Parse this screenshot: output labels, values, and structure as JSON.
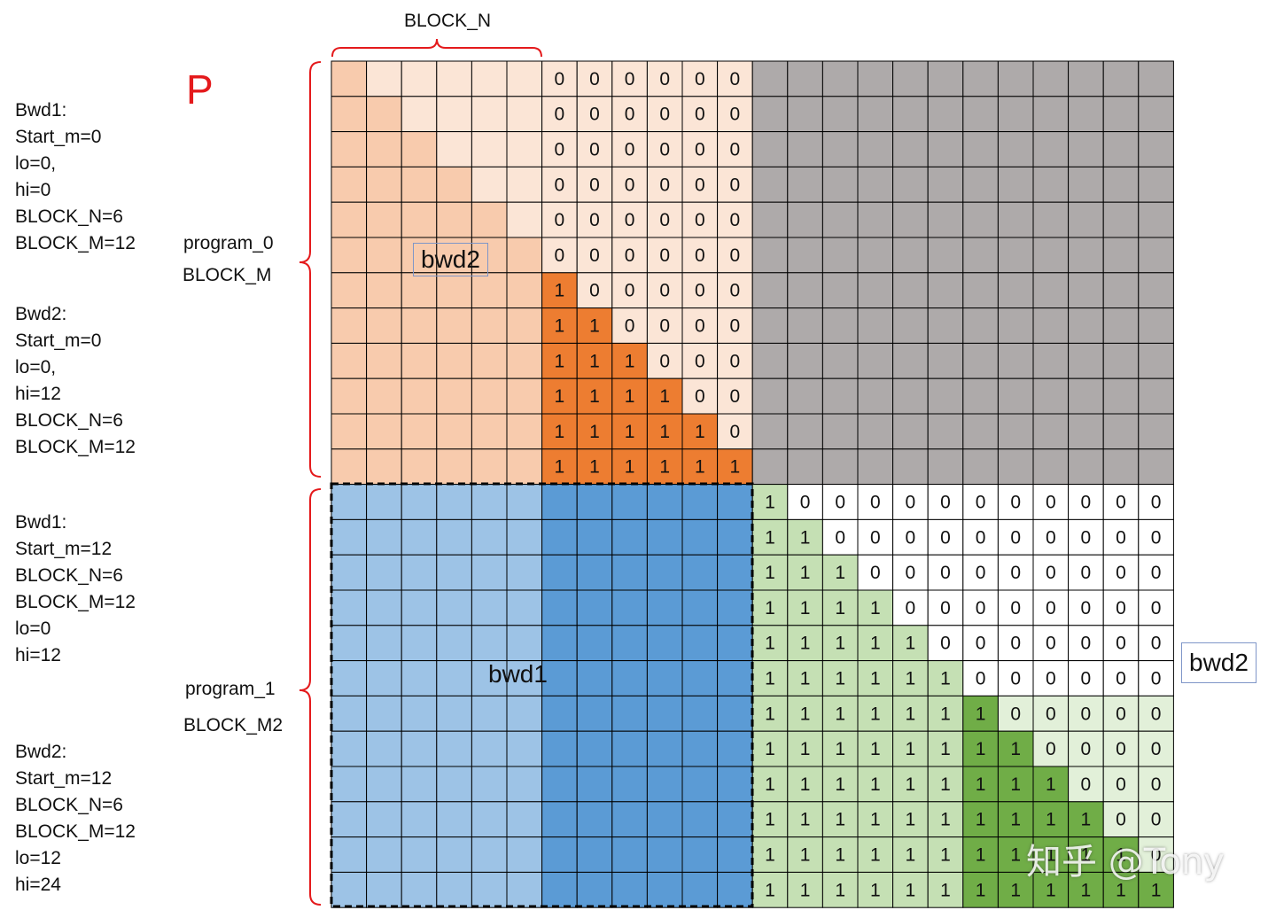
{
  "top_label": "BLOCK_N",
  "p_label": "P",
  "program_0": {
    "name": "program_0",
    "block": "BLOCK_M"
  },
  "program_1": {
    "name": "program_1",
    "block": "BLOCK_M2"
  },
  "region_labels": {
    "bwd2_top": "bwd2",
    "bwd1": "bwd1",
    "bwd2_right": "bwd2"
  },
  "notes": {
    "p0_bwd1": "Bwd1:\nStart_m=0\nlo=0,\nhi=0\nBLOCK_N=6\nBLOCK_M=12",
    "p0_bwd2": "Bwd2:\nStart_m=0\nlo=0,\nhi=12\nBLOCK_N=6\nBLOCK_M=12",
    "p1_bwd1": "Bwd1:\nStart_m=12\nBLOCK_N=6\nBLOCK_M=12\nlo=0\nhi=12",
    "p1_bwd2": "Bwd2:\nStart_m=12\nBLOCK_N=6\nBLOCK_M=12\nlo=12\nhi=24"
  },
  "watermark": "知乎 @Tony",
  "grid": {
    "rows": 24,
    "cols": 24,
    "block_n": 6,
    "block_m": 12,
    "cell_values": {
      "zero": "0",
      "one": "1"
    }
  },
  "colors": {
    "orange_light": "#f8cbad",
    "orange_pale": "#fbe5d6",
    "orange_dark": "#ed7d31",
    "blue_light": "#9dc3e6",
    "blue_dark": "#5b9bd5",
    "gray": "#aeaaaa",
    "green_pale": "#e2f0d9",
    "green_light": "#c5e0b4",
    "green_dark": "#70ad47",
    "white": "#ffffff",
    "brace": "#e41a1c",
    "grid_line": "#000000"
  }
}
